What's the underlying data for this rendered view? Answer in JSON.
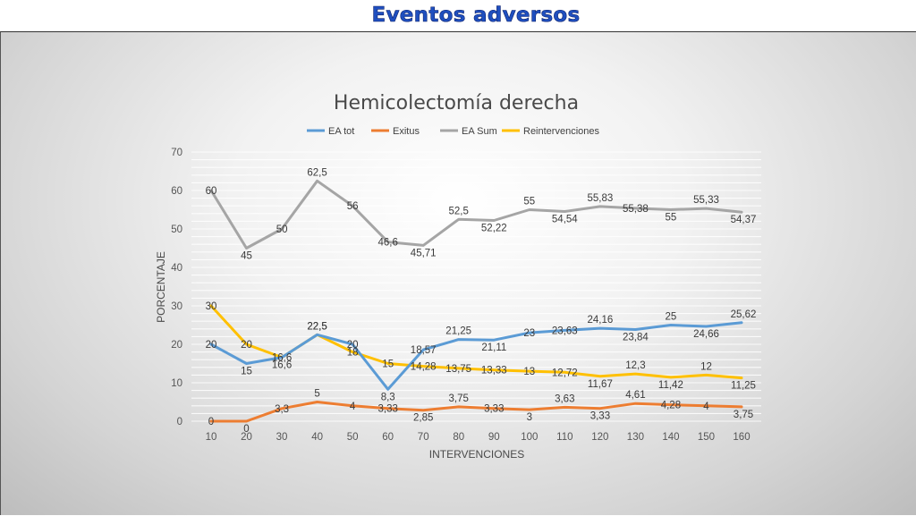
{
  "slide": {
    "title": "Eventos adversos"
  },
  "chart_data": {
    "type": "line",
    "title": "Hemicolectomía derecha",
    "xlabel": "INTERVENCIONES",
    "ylabel": "PORCENTAJE",
    "x": [
      10,
      20,
      30,
      40,
      50,
      60,
      70,
      80,
      90,
      100,
      110,
      120,
      130,
      140,
      150,
      160
    ],
    "yticks": [
      0,
      10,
      20,
      30,
      40,
      50,
      60,
      70
    ],
    "ylim": [
      0,
      70
    ],
    "grid": true,
    "legend_position": "top",
    "series": [
      {
        "name": "EA tot",
        "color": "#5b9bd5",
        "values": [
          20,
          15,
          16.6,
          22.5,
          20,
          8.3,
          18.57,
          21.25,
          21.11,
          23,
          23.63,
          24.16,
          23.84,
          25,
          24.66,
          25.62
        ],
        "labels": [
          "20",
          "15",
          "16,6",
          "22,5",
          "20",
          "8,3",
          "18,57",
          "21,25",
          "21,11",
          "23",
          "23,63",
          "24,16",
          "23,84",
          "25",
          "24,66",
          "25,62"
        ]
      },
      {
        "name": "Exitus",
        "color": "#ed7d31",
        "values": [
          0,
          0,
          3.3,
          5,
          4,
          3.33,
          2.85,
          3.75,
          3.33,
          3,
          3.63,
          3.33,
          4.61,
          4.28,
          4,
          3.75
        ],
        "labels": [
          "0",
          "0",
          "3,3",
          "5",
          "4",
          "3,33",
          "2,85",
          "3,75",
          "3,33",
          "3",
          "3,63",
          "3,33",
          "4,61",
          "4,28",
          "4",
          "3,75"
        ]
      },
      {
        "name": "EA Sum",
        "color": "#a5a5a5",
        "values": [
          60,
          45,
          50,
          62.5,
          56,
          46.6,
          45.71,
          52.5,
          52.22,
          55,
          54.54,
          55.83,
          55.38,
          55,
          55.33,
          54.37
        ],
        "labels": [
          "60",
          "45",
          "50",
          "62,5",
          "56",
          "46,6",
          "45,71",
          "52,5",
          "52,22",
          "55",
          "54,54",
          "55,83",
          "55,38",
          "55",
          "55,33",
          "54,37"
        ]
      },
      {
        "name": "Reintervenciones",
        "color": "#ffc000",
        "values": [
          30,
          20,
          16.6,
          22.5,
          18,
          15,
          14.28,
          13.75,
          13.33,
          13,
          12.72,
          11.67,
          12.3,
          11.42,
          12,
          11.25
        ],
        "labels": [
          "30",
          "20",
          "16,6",
          "22,5",
          "18",
          "15",
          "14,28",
          "13,75",
          "13,33",
          "13",
          "12,72",
          "11,67",
          "12,3",
          "11,42",
          "12",
          "11,25"
        ]
      }
    ]
  }
}
